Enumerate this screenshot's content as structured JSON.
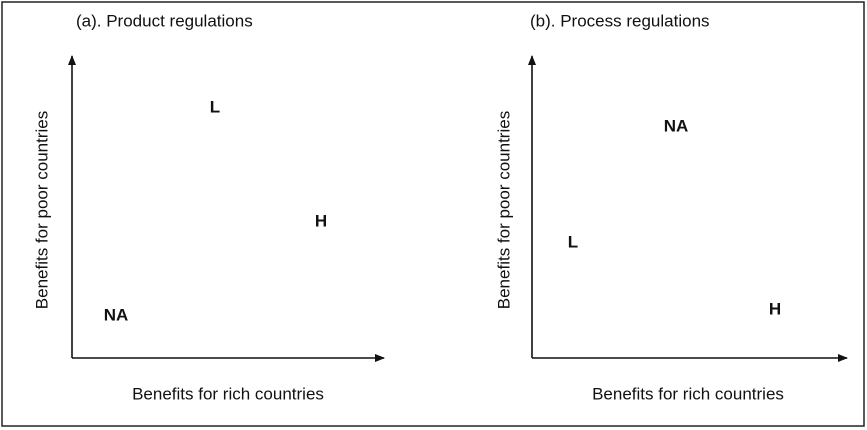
{
  "panels": [
    {
      "title": "(a). Product regulations",
      "x_label": "Benefits for rich countries",
      "y_label": "Benefits for poor countries",
      "points": [
        {
          "label": "L"
        },
        {
          "label": "H"
        },
        {
          "label": "NA"
        }
      ]
    },
    {
      "title": "(b). Process regulations",
      "x_label": "Benefits for rich countries",
      "y_label": "Benefits for poor countries",
      "points": [
        {
          "label": "NA"
        },
        {
          "label": "L"
        },
        {
          "label": "H"
        }
      ]
    }
  ]
}
